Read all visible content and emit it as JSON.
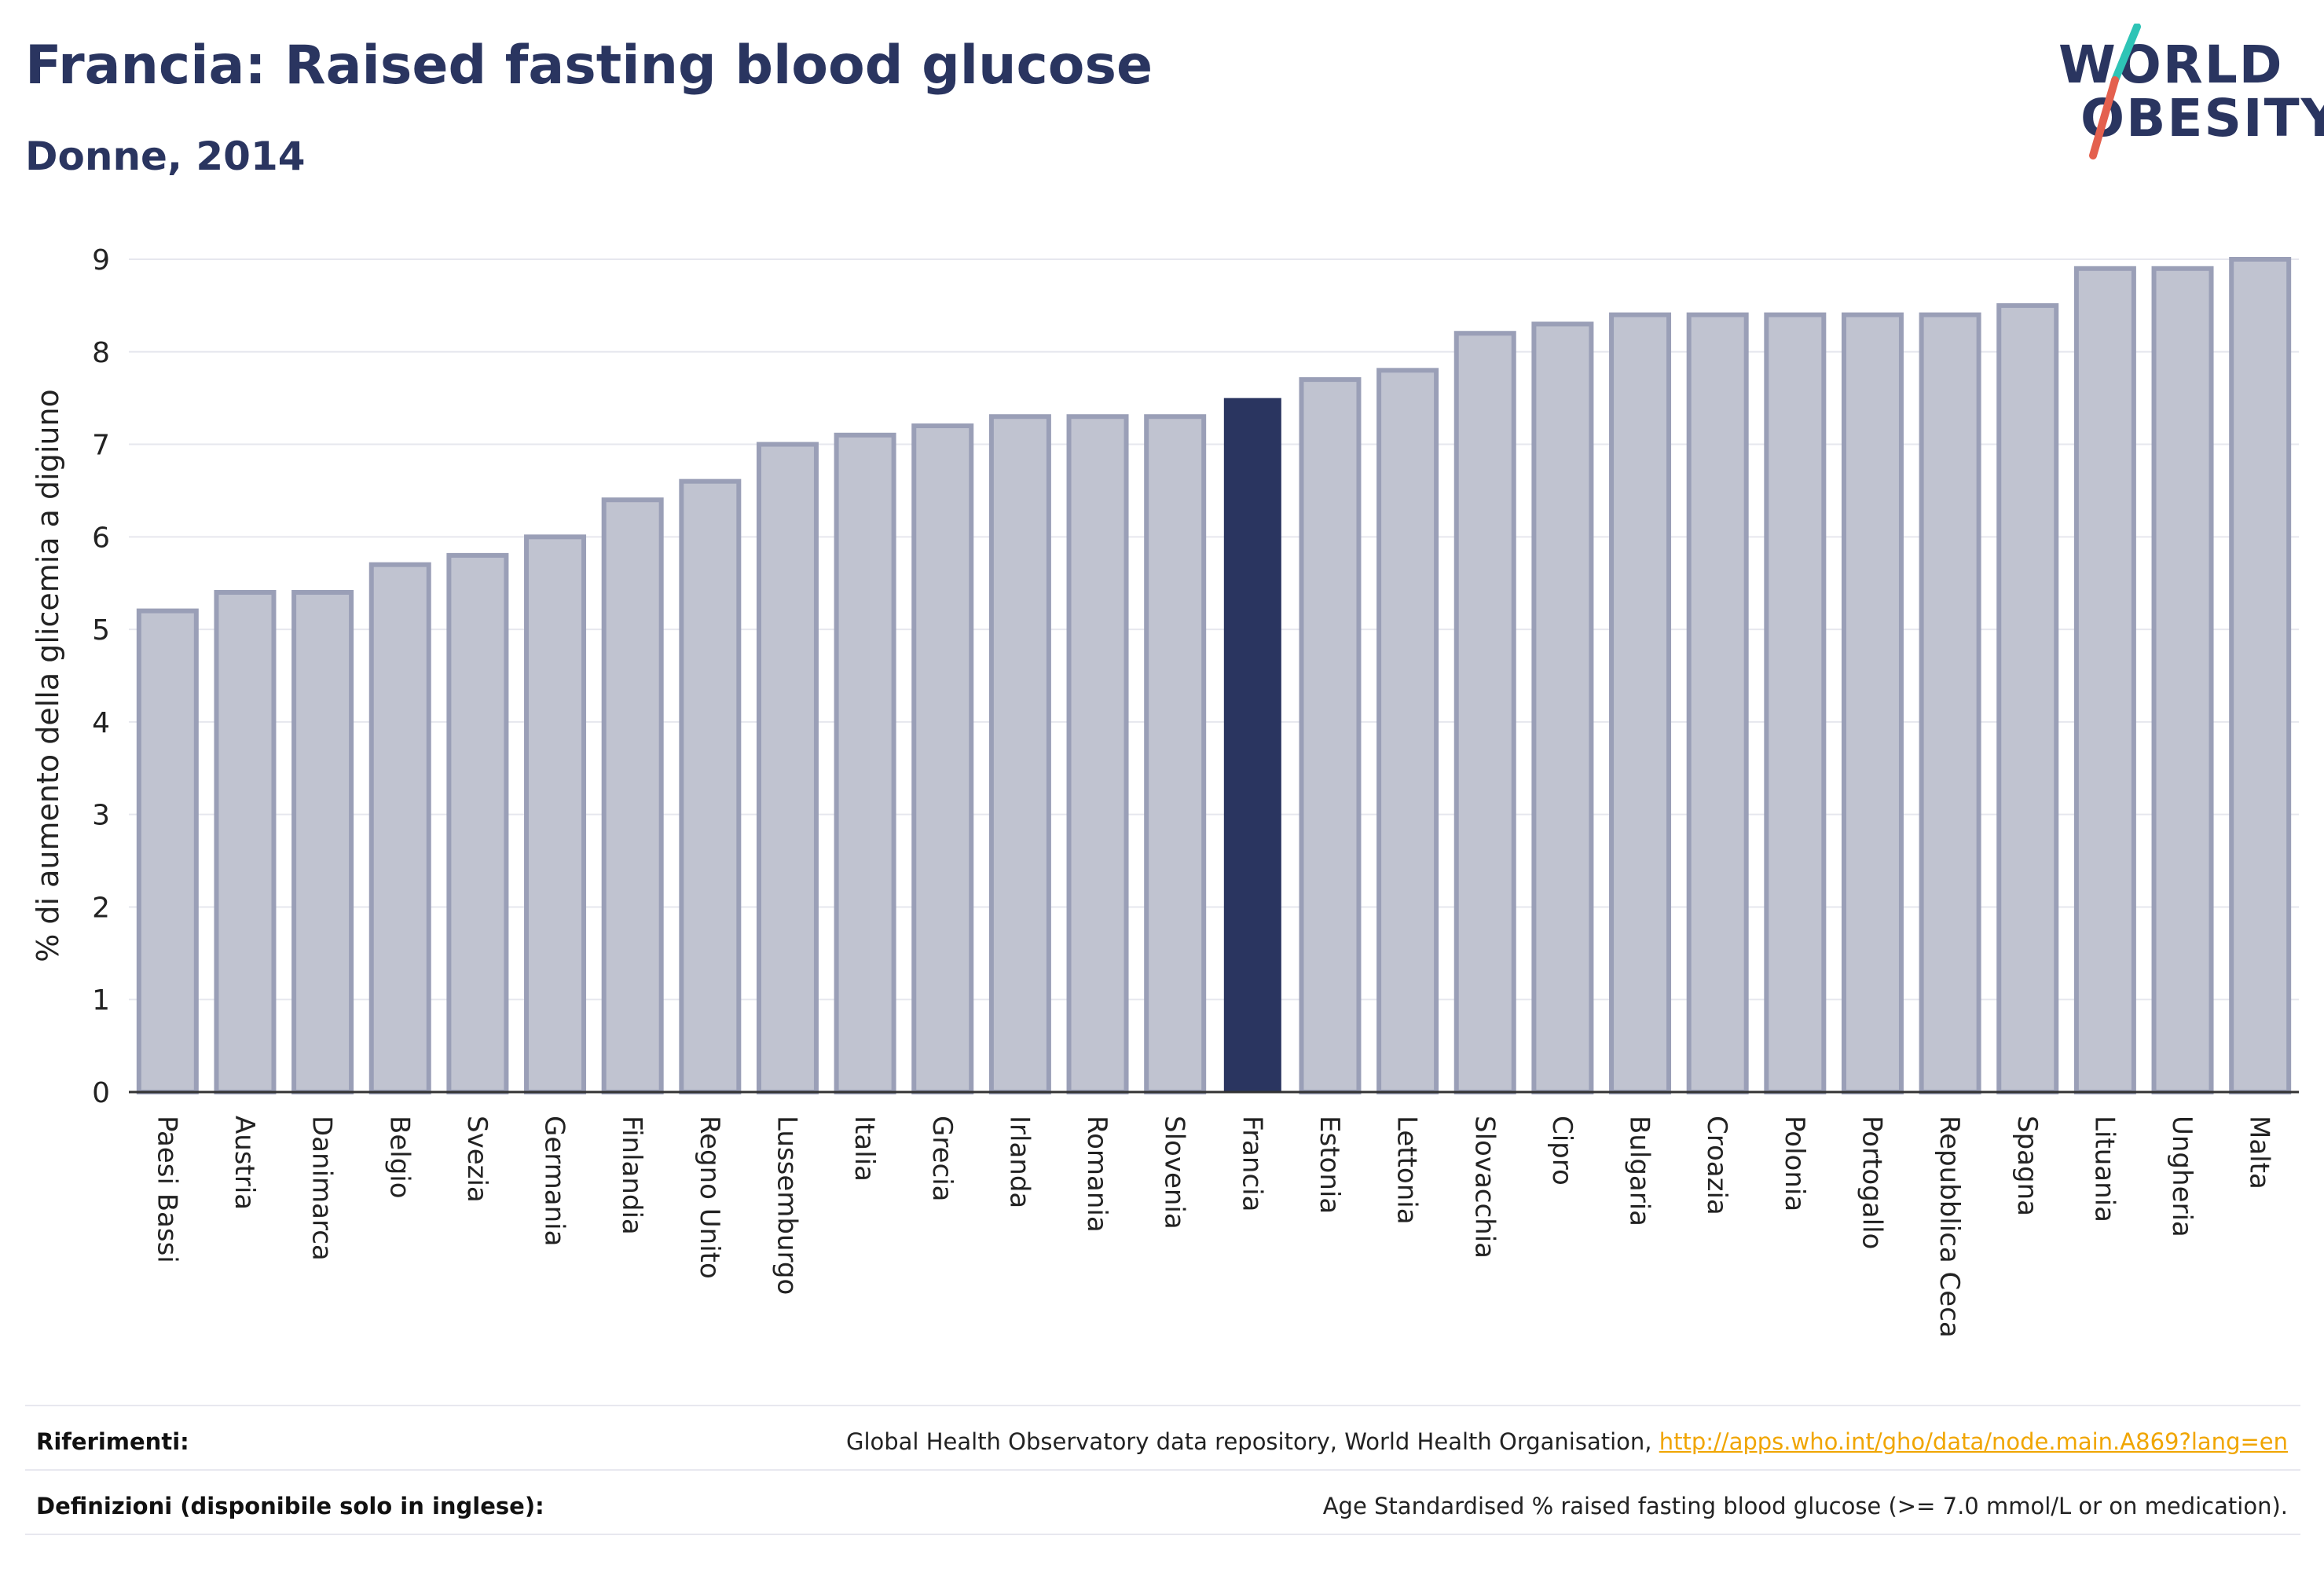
{
  "header": {
    "title": "Francia: Raised fasting blood glucose",
    "subtitle": "Donne, 2014"
  },
  "logo": {
    "line1": "WORLD",
    "line2": "OBESITY",
    "colors": {
      "text": "#2a3560",
      "slash_top": "#2ec4b6",
      "slash_bottom": "#e4604e"
    }
  },
  "chart_data": {
    "type": "bar",
    "ylabel": "% di aumento della glicemia a digiuno",
    "ylim": [
      0,
      9
    ],
    "yticks": [
      0,
      1,
      2,
      3,
      4,
      5,
      6,
      7,
      8,
      9
    ],
    "grid": true,
    "highlight": "Francia",
    "colors": {
      "bar": "#c0c3d0",
      "bar_stroke": "#9a9fb7",
      "highlight": "#2a3560"
    },
    "categories": [
      "Paesi Bassi",
      "Austria",
      "Danimarca",
      "Belgio",
      "Svezia",
      "Germania",
      "Finlandia",
      "Regno Unito",
      "Lussemburgo",
      "Italia",
      "Grecia",
      "Irlanda",
      "Romania",
      "Slovenia",
      "Francia",
      "Estonia",
      "Lettonia",
      "Slovacchia",
      "Cipro",
      "Bulgaria",
      "Croazia",
      "Polonia",
      "Portogallo",
      "Repubblica Ceca",
      "Spagna",
      "Lituania",
      "Ungheria",
      "Malta"
    ],
    "values": [
      5.2,
      5.4,
      5.4,
      5.7,
      5.8,
      6.0,
      6.4,
      6.6,
      7.0,
      7.1,
      7.2,
      7.3,
      7.3,
      7.3,
      7.5,
      7.7,
      7.8,
      8.2,
      8.3,
      8.4,
      8.4,
      8.4,
      8.4,
      8.4,
      8.5,
      8.9,
      8.9,
      9.0
    ]
  },
  "footer": {
    "references_label": "Riferimenti:",
    "references_text": "Global Health Observatory data repository, World Health Organisation, ",
    "references_link": "http://apps.who.int/gho/data/node.main.A869?lang=en",
    "definitions_label": "Definizioni (disponibile solo in inglese):",
    "definitions_text": "Age Standardised % raised fasting blood glucose (>= 7.0 mmol/L or on medication)."
  }
}
